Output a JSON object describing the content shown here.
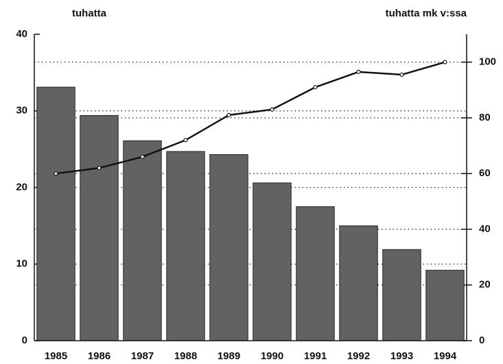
{
  "chart_data": {
    "type": "bar-line",
    "y_axis_label": "tuhatta",
    "y2_axis_label": "tuhatta mk v:ssa",
    "categories": [
      "1985",
      "1986",
      "1987",
      "1988",
      "1989",
      "1990",
      "1991",
      "1992",
      "1993",
      "1994"
    ],
    "series": [
      {
        "type": "bar",
        "color": "#626262",
        "values": [
          33.1,
          29.4,
          26.1,
          24.7,
          24.3,
          20.6,
          17.5,
          15.0,
          11.9,
          9.2
        ]
      },
      {
        "type": "line",
        "axis": "y2",
        "color": "#111111",
        "values": [
          60,
          62,
          66,
          72,
          81,
          83,
          91,
          96.5,
          95.5,
          100
        ]
      }
    ],
    "ylim": [
      0,
      40
    ],
    "yticks": [
      0,
      10,
      20,
      30,
      40
    ],
    "y2lim": [
      0,
      110
    ],
    "y2ticks": [
      0,
      20,
      40,
      60,
      80,
      100
    ],
    "grid": true
  }
}
